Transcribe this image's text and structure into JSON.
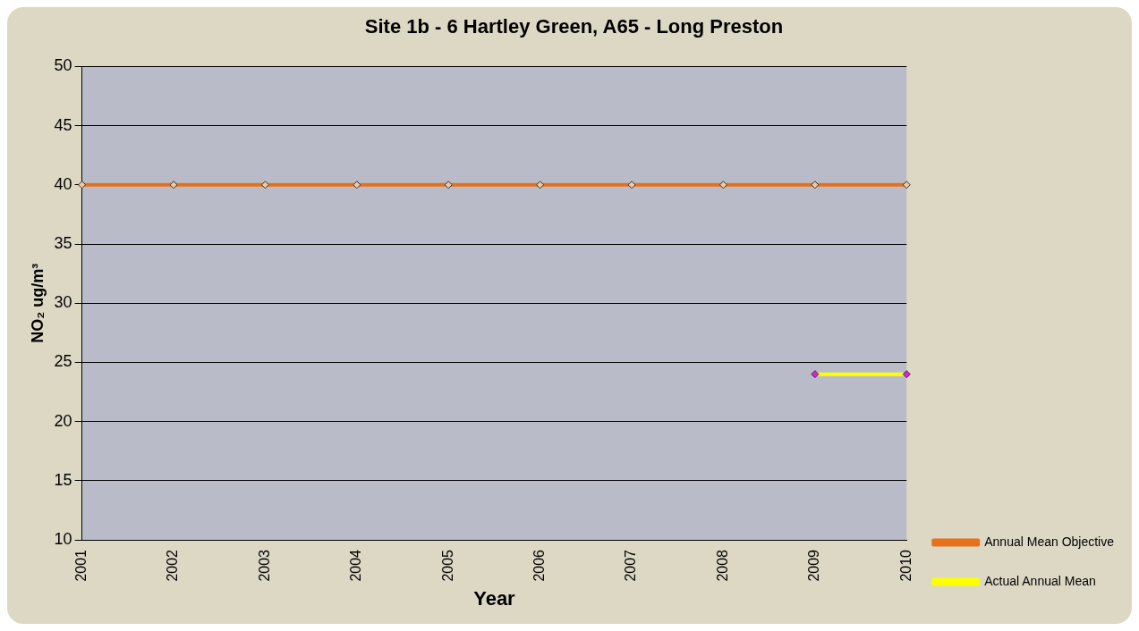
{
  "chart_data": {
    "type": "line",
    "title": "Site 1b - 6 Hartley Green, A65 - Long Preston",
    "xlabel": "Year",
    "ylabel": "NO₂ ug/m³",
    "categories": [
      "2001",
      "2002",
      "2003",
      "2004",
      "2005",
      "2006",
      "2007",
      "2008",
      "2009",
      "2010"
    ],
    "series": [
      {
        "name": "Annual Mean Objective",
        "color": "#e8701a",
        "values": [
          40,
          40,
          40,
          40,
          40,
          40,
          40,
          40,
          40,
          40
        ]
      },
      {
        "name": "Actual Annual Mean",
        "color": "#ffff00",
        "values": [
          null,
          null,
          null,
          null,
          null,
          null,
          null,
          null,
          24,
          24
        ]
      }
    ],
    "ylim": [
      10,
      50
    ],
    "yticks": [
      10,
      15,
      20,
      25,
      30,
      35,
      40,
      45,
      50
    ],
    "grid": "y",
    "legend": "bottom right",
    "marker": "diamond",
    "line_style": "solid"
  }
}
